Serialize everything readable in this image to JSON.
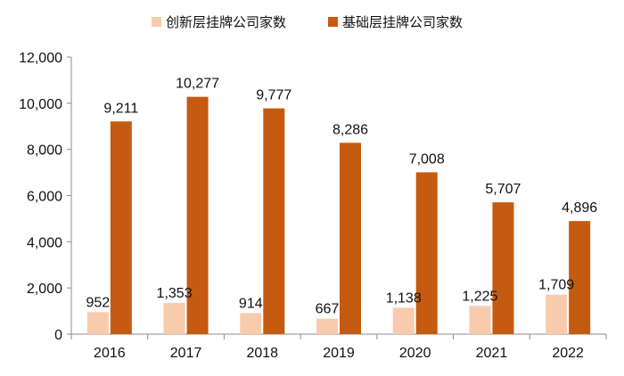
{
  "chart_data": {
    "type": "bar",
    "title": "",
    "xlabel": "",
    "ylabel": "",
    "categories": [
      "2016",
      "2017",
      "2018",
      "2019",
      "2020",
      "2021",
      "2022"
    ],
    "series": [
      {
        "name": "创新层挂牌公司家数",
        "color": "#F9CBAD",
        "values": [
          952,
          1353,
          914,
          667,
          1138,
          1225,
          1709
        ]
      },
      {
        "name": "基础层挂牌公司家数",
        "color": "#C55A11",
        "values": [
          9211,
          10277,
          9777,
          8286,
          7008,
          5707,
          4896
        ]
      }
    ],
    "ylim": [
      0,
      12000
    ],
    "yticks": [
      0,
      2000,
      4000,
      6000,
      8000,
      10000,
      12000
    ],
    "ytick_labels": [
      "0",
      "2,000",
      "4,000",
      "6,000",
      "8,000",
      "10,000",
      "12,000"
    ],
    "data_labels": [
      [
        "952",
        "1,353",
        "914",
        "667",
        "1,138",
        "1,225",
        "1,709"
      ],
      [
        "9,211",
        "10,277",
        "9,777",
        "8,286",
        "7,008",
        "5,707",
        "4,896"
      ]
    ],
    "grid": false,
    "legend_position": "top-center"
  }
}
